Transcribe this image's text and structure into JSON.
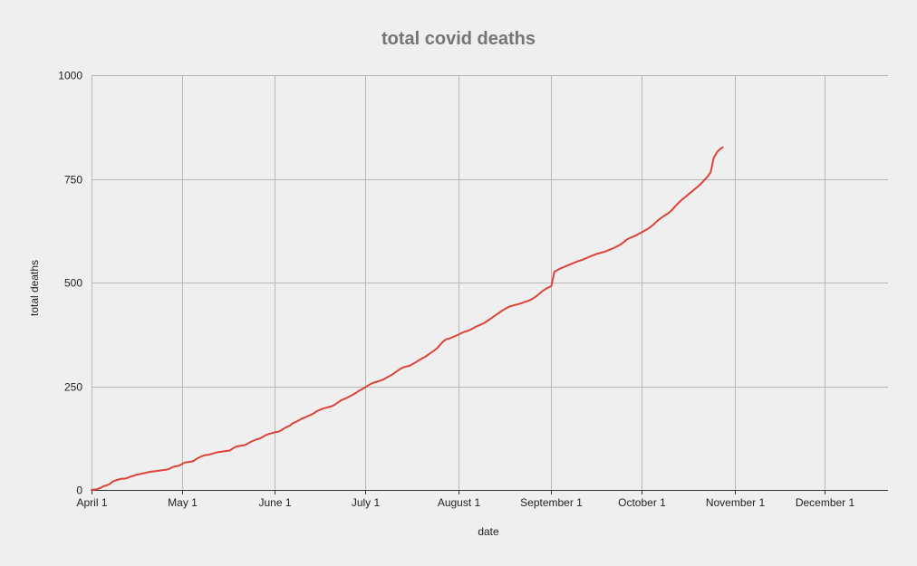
{
  "chart_data": {
    "type": "line",
    "title": "total covid deaths",
    "xlabel": "date",
    "ylabel": "total deaths",
    "x_ticks": [
      {
        "label": "April 1",
        "day": 0
      },
      {
        "label": "May 1",
        "day": 30
      },
      {
        "label": "June 1",
        "day": 61
      },
      {
        "label": "July 1",
        "day": 91
      },
      {
        "label": "August 1",
        "day": 122
      },
      {
        "label": "September 1",
        "day": 153
      },
      {
        "label": "October 1",
        "day": 183
      },
      {
        "label": "November 1",
        "day": 214
      },
      {
        "label": "December 1",
        "day": 244
      }
    ],
    "xlim": [
      0,
      265
    ],
    "ylim": [
      0,
      1000
    ],
    "y_ticks": [
      0,
      250,
      500,
      750,
      1000
    ],
    "grid": true,
    "legend": "none",
    "line_color": "#db4437",
    "series": [
      {
        "name": "",
        "points": [
          [
            0,
            0
          ],
          [
            1,
            1
          ],
          [
            2,
            2
          ],
          [
            3,
            5
          ],
          [
            4,
            9
          ],
          [
            5,
            11
          ],
          [
            6,
            14
          ],
          [
            7,
            20
          ],
          [
            8,
            23
          ],
          [
            9,
            25
          ],
          [
            10,
            27
          ],
          [
            11,
            27
          ],
          [
            12,
            29
          ],
          [
            13,
            32
          ],
          [
            14,
            34
          ],
          [
            15,
            37
          ],
          [
            16,
            38
          ],
          [
            17,
            40
          ],
          [
            18,
            41
          ],
          [
            19,
            43
          ],
          [
            20,
            44
          ],
          [
            21,
            45
          ],
          [
            22,
            46
          ],
          [
            23,
            47
          ],
          [
            24,
            48
          ],
          [
            25,
            49
          ],
          [
            26,
            51
          ],
          [
            27,
            55
          ],
          [
            28,
            57
          ],
          [
            29,
            58
          ],
          [
            30,
            62
          ],
          [
            31,
            66
          ],
          [
            32,
            67
          ],
          [
            33,
            68
          ],
          [
            34,
            70
          ],
          [
            35,
            75
          ],
          [
            36,
            79
          ],
          [
            37,
            82
          ],
          [
            38,
            84
          ],
          [
            39,
            85
          ],
          [
            40,
            87
          ],
          [
            41,
            89
          ],
          [
            42,
            91
          ],
          [
            43,
            92
          ],
          [
            44,
            93
          ],
          [
            45,
            94
          ],
          [
            46,
            95
          ],
          [
            47,
            100
          ],
          [
            48,
            104
          ],
          [
            49,
            106
          ],
          [
            50,
            107
          ],
          [
            51,
            108
          ],
          [
            52,
            112
          ],
          [
            53,
            116
          ],
          [
            54,
            119
          ],
          [
            55,
            122
          ],
          [
            56,
            124
          ],
          [
            57,
            128
          ],
          [
            58,
            132
          ],
          [
            59,
            135
          ],
          [
            60,
            137
          ],
          [
            61,
            139
          ],
          [
            62,
            140
          ],
          [
            63,
            143
          ],
          [
            64,
            148
          ],
          [
            65,
            152
          ],
          [
            66,
            155
          ],
          [
            67,
            161
          ],
          [
            68,
            164
          ],
          [
            69,
            168
          ],
          [
            70,
            172
          ],
          [
            71,
            175
          ],
          [
            72,
            178
          ],
          [
            73,
            181
          ],
          [
            74,
            185
          ],
          [
            75,
            190
          ],
          [
            76,
            193
          ],
          [
            77,
            196
          ],
          [
            78,
            198
          ],
          [
            79,
            200
          ],
          [
            80,
            202
          ],
          [
            81,
            206
          ],
          [
            82,
            211
          ],
          [
            83,
            216
          ],
          [
            84,
            219
          ],
          [
            85,
            222
          ],
          [
            86,
            226
          ],
          [
            87,
            230
          ],
          [
            88,
            234
          ],
          [
            89,
            239
          ],
          [
            90,
            243
          ],
          [
            91,
            247
          ],
          [
            92,
            252
          ],
          [
            93,
            256
          ],
          [
            94,
            259
          ],
          [
            95,
            261
          ],
          [
            96,
            263
          ],
          [
            97,
            266
          ],
          [
            98,
            270
          ],
          [
            99,
            274
          ],
          [
            100,
            278
          ],
          [
            101,
            283
          ],
          [
            102,
            288
          ],
          [
            103,
            293
          ],
          [
            104,
            296
          ],
          [
            105,
            298
          ],
          [
            106,
            300
          ],
          [
            107,
            304
          ],
          [
            108,
            308
          ],
          [
            109,
            313
          ],
          [
            110,
            317
          ],
          [
            111,
            321
          ],
          [
            112,
            326
          ],
          [
            113,
            331
          ],
          [
            114,
            336
          ],
          [
            115,
            342
          ],
          [
            116,
            350
          ],
          [
            117,
            358
          ],
          [
            118,
            363
          ],
          [
            119,
            365
          ],
          [
            120,
            368
          ],
          [
            121,
            371
          ],
          [
            122,
            374
          ],
          [
            123,
            378
          ],
          [
            124,
            381
          ],
          [
            125,
            383
          ],
          [
            126,
            386
          ],
          [
            127,
            390
          ],
          [
            128,
            394
          ],
          [
            129,
            397
          ],
          [
            130,
            400
          ],
          [
            131,
            404
          ],
          [
            132,
            409
          ],
          [
            133,
            414
          ],
          [
            134,
            419
          ],
          [
            135,
            424
          ],
          [
            136,
            429
          ],
          [
            137,
            434
          ],
          [
            138,
            438
          ],
          [
            139,
            442
          ],
          [
            140,
            444
          ],
          [
            141,
            446
          ],
          [
            142,
            448
          ],
          [
            143,
            450
          ],
          [
            144,
            453
          ],
          [
            145,
            455
          ],
          [
            146,
            458
          ],
          [
            147,
            462
          ],
          [
            148,
            467
          ],
          [
            149,
            473
          ],
          [
            150,
            479
          ],
          [
            151,
            484
          ],
          [
            152,
            488
          ],
          [
            153,
            492
          ],
          [
            154,
            526
          ],
          [
            155,
            530
          ],
          [
            156,
            534
          ],
          [
            157,
            537
          ],
          [
            158,
            540
          ],
          [
            159,
            543
          ],
          [
            160,
            546
          ],
          [
            161,
            549
          ],
          [
            162,
            552
          ],
          [
            163,
            554
          ],
          [
            164,
            557
          ],
          [
            165,
            560
          ],
          [
            166,
            563
          ],
          [
            167,
            566
          ],
          [
            168,
            569
          ],
          [
            169,
            571
          ],
          [
            170,
            573
          ],
          [
            171,
            575
          ],
          [
            172,
            578
          ],
          [
            173,
            581
          ],
          [
            174,
            584
          ],
          [
            175,
            588
          ],
          [
            176,
            592
          ],
          [
            177,
            597
          ],
          [
            178,
            603
          ],
          [
            179,
            607
          ],
          [
            180,
            610
          ],
          [
            181,
            613
          ],
          [
            182,
            617
          ],
          [
            183,
            621
          ],
          [
            184,
            625
          ],
          [
            185,
            629
          ],
          [
            186,
            634
          ],
          [
            187,
            640
          ],
          [
            188,
            647
          ],
          [
            189,
            653
          ],
          [
            190,
            658
          ],
          [
            191,
            663
          ],
          [
            192,
            668
          ],
          [
            193,
            674
          ],
          [
            194,
            682
          ],
          [
            195,
            690
          ],
          [
            196,
            697
          ],
          [
            197,
            703
          ],
          [
            198,
            709
          ],
          [
            199,
            715
          ],
          [
            200,
            721
          ],
          [
            201,
            727
          ],
          [
            202,
            733
          ],
          [
            203,
            740
          ],
          [
            204,
            748
          ],
          [
            205,
            756
          ],
          [
            206,
            766
          ],
          [
            207,
            800
          ],
          [
            208,
            813
          ],
          [
            209,
            821
          ],
          [
            210,
            826
          ]
        ]
      }
    ]
  }
}
